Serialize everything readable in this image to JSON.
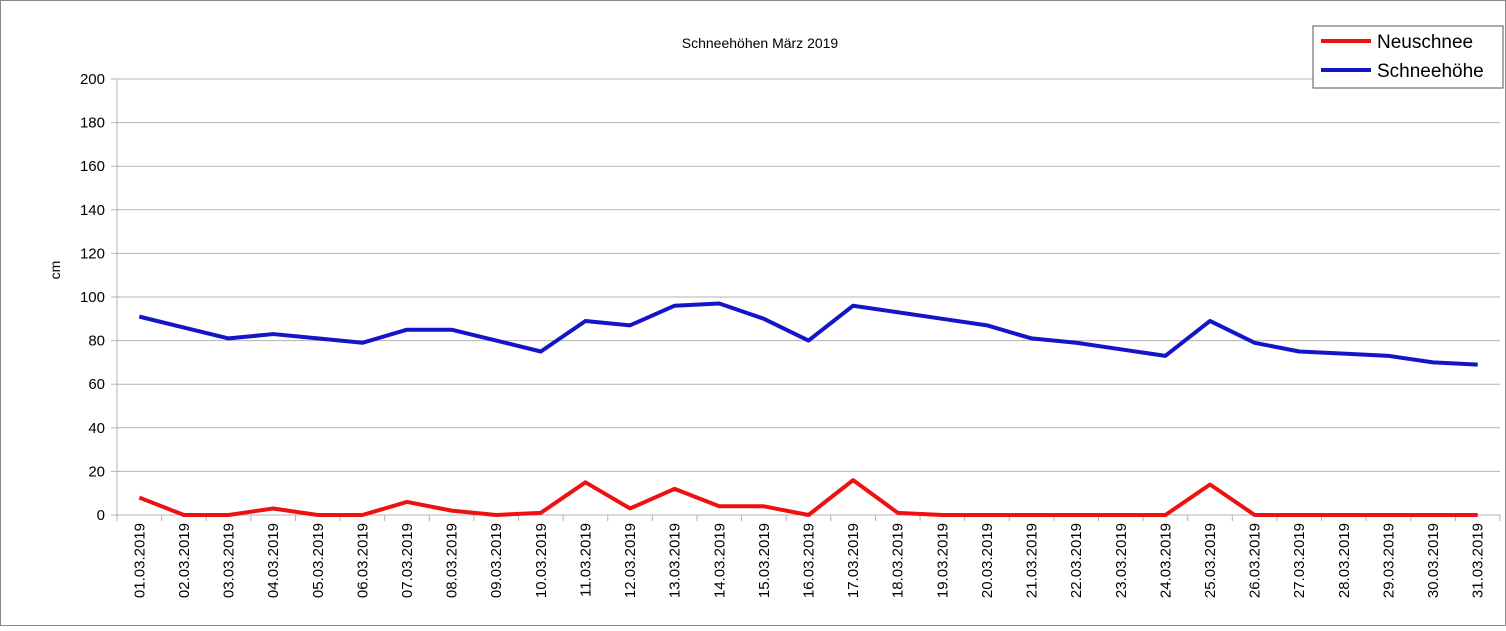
{
  "chart_data": {
    "type": "line",
    "title": "Schneehöhen März 2019",
    "y_label": "cm",
    "categories": [
      "01.03.2019",
      "02.03.2019",
      "03.03.2019",
      "04.03.2019",
      "05.03.2019",
      "06.03.2019",
      "07.03.2019",
      "08.03.2019",
      "09.03.2019",
      "10.03.2019",
      "11.03.2019",
      "12.03.2019",
      "13.03.2019",
      "14.03.2019",
      "15.03.2019",
      "16.03.2019",
      "17.03.2019",
      "18.03.2019",
      "19.03.2019",
      "20.03.2019",
      "21.03.2019",
      "22.03.2019",
      "23.03.2019",
      "24.03.2019",
      "25.03.2019",
      "26.03.2019",
      "27.03.2019",
      "28.03.2019",
      "29.03.2019",
      "30.03.2019",
      "31.03.2019"
    ],
    "series": [
      {
        "name": "Neuschnee",
        "color": "#ee1111",
        "values": [
          8,
          0,
          0,
          3,
          0,
          0,
          6,
          2,
          0,
          1,
          15,
          3,
          12,
          4,
          4,
          0,
          16,
          1,
          0,
          0,
          0,
          0,
          0,
          0,
          14,
          0,
          0,
          0,
          0,
          0,
          0
        ]
      },
      {
        "name": "Schneehöhe",
        "color": "#1414c8",
        "values": [
          91,
          86,
          81,
          83,
          81,
          79,
          85,
          85,
          80,
          75,
          89,
          87,
          96,
          97,
          90,
          80,
          96,
          93,
          90,
          87,
          81,
          79,
          76,
          73,
          89,
          79,
          75,
          74,
          73,
          70,
          69
        ]
      }
    ],
    "ylim": [
      0,
      200
    ],
    "yticks": [
      0,
      20,
      40,
      60,
      80,
      100,
      120,
      140,
      160,
      180,
      200
    ],
    "grid": true,
    "legend": "top-right"
  }
}
